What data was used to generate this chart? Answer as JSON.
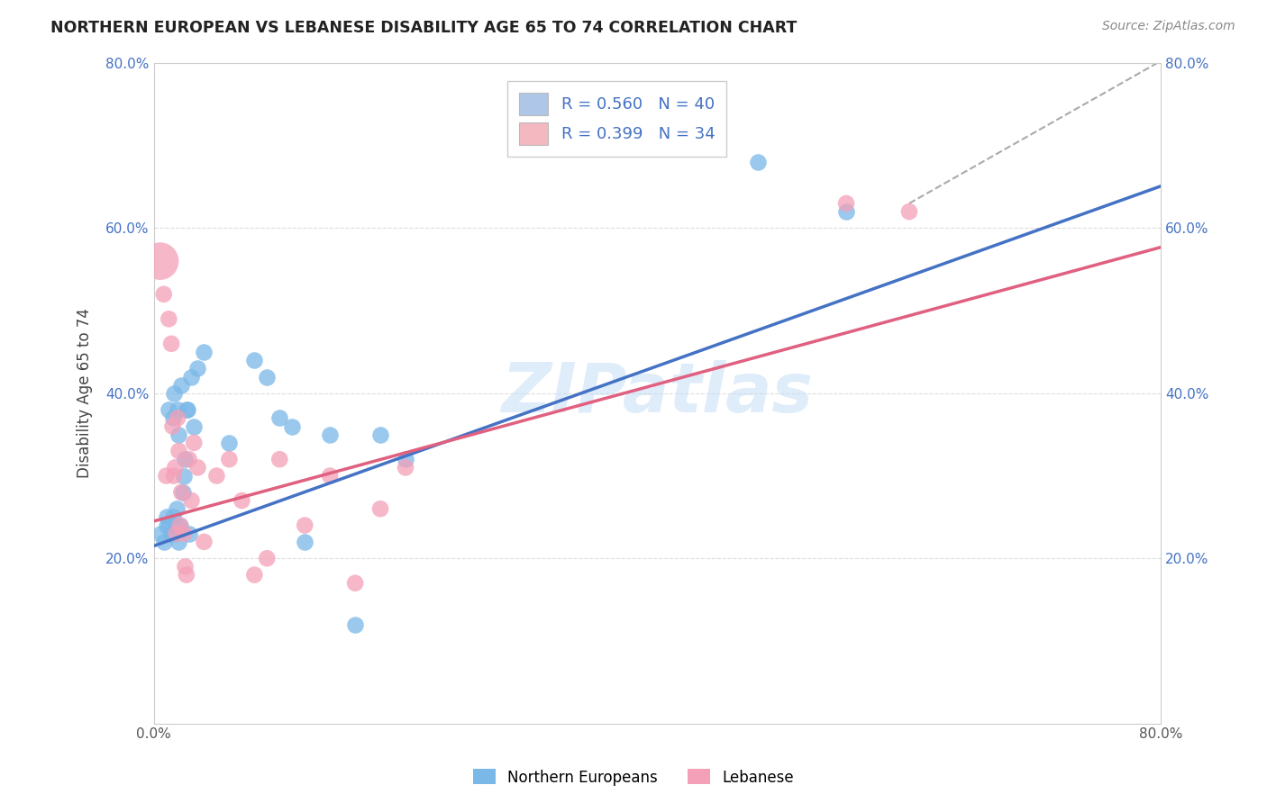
{
  "title": "NORTHERN EUROPEAN VS LEBANESE DISABILITY AGE 65 TO 74 CORRELATION CHART",
  "source": "Source: ZipAtlas.com",
  "ylabel": "Disability Age 65 to 74",
  "xlim": [
    0.0,
    0.8
  ],
  "ylim": [
    0.0,
    0.8
  ],
  "xtick_labels": [
    "0.0%",
    "",
    "",
    "",
    "80.0%"
  ],
  "xtick_vals": [
    0.0,
    0.2,
    0.4,
    0.6,
    0.8
  ],
  "ytick_labels": [
    "20.0%",
    "40.0%",
    "60.0%",
    "80.0%"
  ],
  "ytick_vals": [
    0.2,
    0.4,
    0.6,
    0.8
  ],
  "legend_entries": [
    {
      "label": "R = 0.560   N = 40",
      "color": "#aec6e8"
    },
    {
      "label": "R = 0.399   N = 34",
      "color": "#f4b8c1"
    }
  ],
  "ne_color": "#7ab8e8",
  "leb_color": "#f4a0b8",
  "ne_line_color": "#4472c4",
  "leb_line_color": "#e06080",
  "ne_trend_intercept": 0.215,
  "ne_trend_slope": 0.545,
  "leb_trend_intercept": 0.245,
  "leb_trend_slope": 0.415,
  "ne_scatter_x": [
    0.005,
    0.008,
    0.01,
    0.01,
    0.012,
    0.012,
    0.014,
    0.015,
    0.015,
    0.016,
    0.017,
    0.018,
    0.018,
    0.019,
    0.02,
    0.02,
    0.021,
    0.022,
    0.023,
    0.024,
    0.025,
    0.026,
    0.027,
    0.028,
    0.03,
    0.032,
    0.035,
    0.04,
    0.06,
    0.08,
    0.09,
    0.1,
    0.11,
    0.12,
    0.14,
    0.16,
    0.18,
    0.2,
    0.48,
    0.55
  ],
  "ne_scatter_y": [
    0.23,
    0.22,
    0.24,
    0.25,
    0.24,
    0.38,
    0.23,
    0.25,
    0.37,
    0.4,
    0.23,
    0.24,
    0.26,
    0.38,
    0.22,
    0.35,
    0.24,
    0.41,
    0.28,
    0.3,
    0.32,
    0.38,
    0.38,
    0.23,
    0.42,
    0.36,
    0.43,
    0.45,
    0.34,
    0.44,
    0.42,
    0.37,
    0.36,
    0.22,
    0.35,
    0.12,
    0.35,
    0.32,
    0.68,
    0.62
  ],
  "leb_scatter_x": [
    0.005,
    0.008,
    0.01,
    0.012,
    0.014,
    0.015,
    0.016,
    0.017,
    0.018,
    0.019,
    0.02,
    0.021,
    0.022,
    0.024,
    0.025,
    0.026,
    0.028,
    0.03,
    0.032,
    0.035,
    0.04,
    0.05,
    0.06,
    0.07,
    0.08,
    0.09,
    0.1,
    0.12,
    0.14,
    0.16,
    0.18,
    0.2,
    0.55,
    0.6
  ],
  "leb_scatter_y": [
    0.56,
    0.52,
    0.3,
    0.49,
    0.46,
    0.36,
    0.3,
    0.31,
    0.23,
    0.37,
    0.33,
    0.24,
    0.28,
    0.23,
    0.19,
    0.18,
    0.32,
    0.27,
    0.34,
    0.31,
    0.22,
    0.3,
    0.32,
    0.27,
    0.18,
    0.2,
    0.32,
    0.24,
    0.3,
    0.17,
    0.26,
    0.31,
    0.63,
    0.62
  ],
  "leb_special_idx": 0,
  "leb_special_size": 900,
  "default_size": 180,
  "watermark": "ZIPatlas",
  "dashed_line_color": "#aaaaaa",
  "grid_color": "#dddddd"
}
